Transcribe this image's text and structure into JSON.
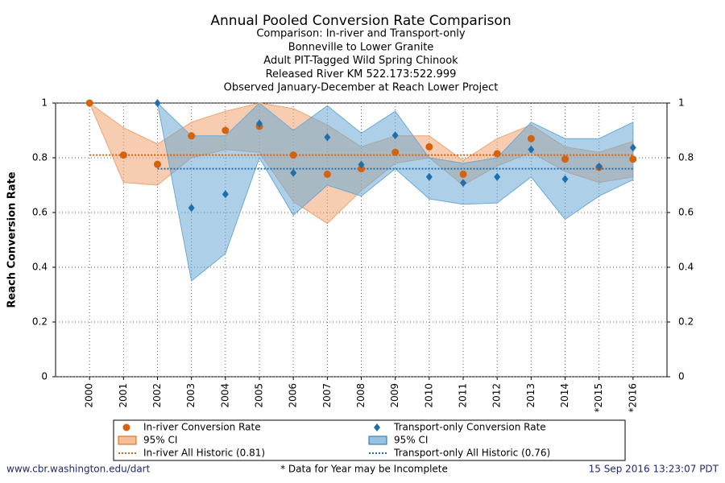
{
  "chart_data": {
    "type": "scatter",
    "title": "Annual Pooled Conversion Rate Comparison",
    "subtitles": [
      "Comparison: In-river and Transport-only",
      "Bonneville to Lower Granite",
      "Adult PIT-Tagged Wild Spring Chinook",
      "Released River KM 522.173:522.999",
      "Observed January-December at Reach Lower Project"
    ],
    "ylabel": "Reach Conversion Rate",
    "categories": [
      "2000",
      "2001",
      "2002",
      "2003",
      "2004",
      "2005",
      "2006",
      "2007",
      "2008",
      "2009",
      "2010",
      "2011",
      "2012",
      "2013",
      "2014",
      "*2015",
      "*2016"
    ],
    "ylim": [
      0,
      1
    ],
    "yticks": [
      0,
      0.2,
      0.4,
      0.6,
      0.8,
      1
    ],
    "y2lim": [
      0,
      1
    ],
    "y2ticks": [
      0,
      0.2,
      0.4,
      0.6,
      0.8,
      1
    ],
    "grid": true,
    "series": [
      {
        "name": "In-river Conversion Rate",
        "color": "#d4620f",
        "marker": "circle",
        "values": [
          1.0,
          0.81,
          0.776,
          0.88,
          0.9,
          0.915,
          0.81,
          0.74,
          0.76,
          0.82,
          0.84,
          0.74,
          0.815,
          0.87,
          0.795,
          0.765,
          0.795
        ],
        "band": {
          "name": "95% CI",
          "color": "#f0a370",
          "lower": [
            1.0,
            0.71,
            0.7,
            0.8,
            0.83,
            0.82,
            0.64,
            0.56,
            0.68,
            0.78,
            0.8,
            0.7,
            0.77,
            0.82,
            0.75,
            0.71,
            0.73
          ],
          "upper": [
            1.0,
            0.91,
            0.85,
            0.93,
            0.97,
            1.0,
            0.98,
            0.92,
            0.84,
            0.88,
            0.88,
            0.79,
            0.87,
            0.92,
            0.84,
            0.82,
            0.86
          ]
        },
        "historic": {
          "name": "In-river All Historic (0.81)",
          "value": 0.81
        }
      },
      {
        "name": "Transport-only Conversion Rate",
        "color": "#1f6fad",
        "marker": "diamond",
        "values": [
          null,
          null,
          1.0,
          0.617,
          0.667,
          0.925,
          0.745,
          0.875,
          0.775,
          0.882,
          0.73,
          0.708,
          0.73,
          0.83,
          0.722,
          0.768,
          0.837
        ],
        "band": {
          "name": "95% CI",
          "color": "#6aa9d6",
          "lower": [
            null,
            null,
            1.0,
            0.35,
            0.45,
            0.8,
            0.59,
            0.7,
            0.66,
            0.76,
            0.65,
            0.63,
            0.635,
            0.73,
            0.575,
            0.66,
            0.72
          ],
          "upper": [
            null,
            null,
            1.0,
            0.88,
            0.88,
            1.0,
            0.9,
            0.99,
            0.89,
            0.97,
            0.8,
            0.78,
            0.8,
            0.93,
            0.87,
            0.87,
            0.93
          ]
        },
        "historic": {
          "name": "Transport-only All Historic (0.76)",
          "value": 0.76
        }
      }
    ],
    "footer": {
      "left": "www.cbr.washington.edu/dart",
      "center": "* Data for Year may be Incomplete",
      "right": "15 Sep 2016 13:23:07 PDT"
    }
  }
}
